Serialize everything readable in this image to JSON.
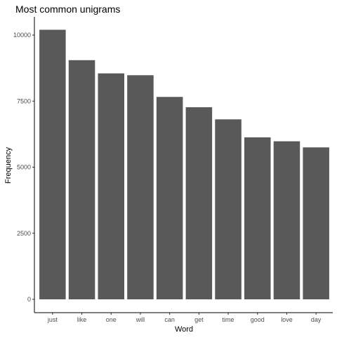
{
  "chart_data": {
    "type": "bar",
    "title": "Most common unigrams",
    "xlabel": "Word",
    "ylabel": "Frequency",
    "categories": [
      "just",
      "like",
      "one",
      "will",
      "can",
      "get",
      "time",
      "good",
      "love",
      "day"
    ],
    "values": [
      10200,
      9050,
      8550,
      8480,
      7660,
      7270,
      6810,
      6130,
      5980,
      5750
    ],
    "ylim": [
      0,
      10500
    ],
    "yticks": [
      0,
      2500,
      5000,
      7500,
      10000
    ],
    "grid": false,
    "bar_color": "#595959"
  }
}
